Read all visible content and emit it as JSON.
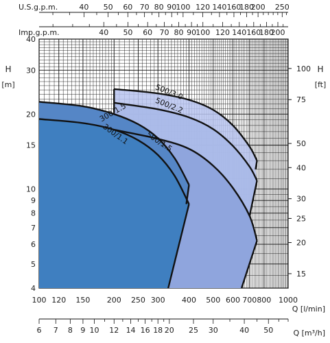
{
  "chart_data": {
    "type": "area",
    "title": "",
    "x_axis": {
      "label": "Q [l/min]",
      "scale": "log",
      "range": [
        100,
        1000
      ],
      "ticks": [
        100,
        120,
        150,
        200,
        250,
        300,
        400,
        500,
        600,
        700,
        800,
        1000
      ]
    },
    "y_axis_left": {
      "label": "H",
      "unit": "[m]",
      "scale": "log",
      "range": [
        4,
        40
      ],
      "ticks": [
        4,
        5,
        6,
        7,
        8,
        9,
        10,
        15,
        20,
        30,
        40
      ]
    },
    "y_axis_right": {
      "label": "H",
      "unit": "[ft]",
      "ticks": [
        15,
        20,
        25,
        30,
        40,
        50,
        75,
        100
      ]
    },
    "top_axis_us": {
      "label": "U.S.g.p.m.",
      "ticks": [
        40,
        50,
        60,
        70,
        80,
        90,
        100,
        120,
        140,
        160,
        180,
        200,
        250
      ]
    },
    "top_axis_imp": {
      "label": "Imp.g.p.m.",
      "ticks": [
        40,
        50,
        60,
        70,
        80,
        90,
        100,
        120,
        140,
        160,
        180,
        200
      ]
    },
    "bottom_axis_m3h": {
      "label": "Q [m³/h]",
      "ticks": [
        6,
        7,
        8,
        9,
        10,
        12,
        14,
        16,
        18,
        20,
        25,
        30,
        40,
        50
      ]
    },
    "grid": true,
    "legend": "none",
    "series": [
      {
        "name": "300/1.1",
        "color": "#3f7fc0",
        "curve": [
          [
            100,
            19.1
          ],
          [
            150,
            18.4
          ],
          [
            200,
            17.3
          ],
          [
            250,
            15.7
          ],
          [
            300,
            13.7
          ],
          [
            350,
            11.3
          ],
          [
            400,
            8.7
          ]
        ],
        "lower_boundary": [
          [
            400,
            8.7
          ],
          [
            330,
            4
          ]
        ]
      },
      {
        "name": "300/1.5",
        "color": "#5586c6",
        "curve": [
          [
            100,
            22.4
          ],
          [
            150,
            21.5
          ],
          [
            200,
            20.0
          ],
          [
            250,
            18.2
          ],
          [
            300,
            16.0
          ],
          [
            350,
            13.3
          ],
          [
            400,
            10.4
          ]
        ],
        "lower_boundary": [
          [
            400,
            10.4
          ],
          [
            390,
            8.7
          ]
        ]
      },
      {
        "name": "500/1.5",
        "color": "#8fa5dd",
        "curve": [
          [
            200,
            17.3
          ],
          [
            300,
            15.9
          ],
          [
            400,
            14.5
          ],
          [
            500,
            12.4
          ],
          [
            600,
            10.1
          ],
          [
            700,
            7.8
          ],
          [
            750,
            6.2
          ]
        ],
        "lower_boundary": [
          [
            750,
            6.2
          ],
          [
            650,
            4
          ]
        ]
      },
      {
        "name": "500/2.2",
        "color": "#a8b9e8",
        "curve": [
          [
            200,
            22.2
          ],
          [
            300,
            20.9
          ],
          [
            400,
            19.4
          ],
          [
            500,
            17.4
          ],
          [
            600,
            14.9
          ],
          [
            700,
            12.3
          ],
          [
            750,
            10.8
          ]
        ],
        "lower_boundary": [
          [
            750,
            10.8
          ],
          [
            700,
            7.8
          ]
        ]
      },
      {
        "name": "500/3.0",
        "color": "#b7c3ee",
        "curve": [
          [
            200,
            25.2
          ],
          [
            300,
            24.2
          ],
          [
            400,
            22.8
          ],
          [
            500,
            20.8
          ],
          [
            600,
            18.0
          ],
          [
            700,
            14.8
          ],
          [
            750,
            13.0
          ]
        ],
        "lower_boundary": [
          [
            750,
            13.0
          ],
          [
            740,
            12.0
          ]
        ]
      }
    ]
  }
}
